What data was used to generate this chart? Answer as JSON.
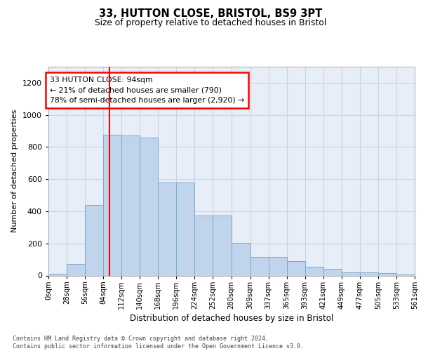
{
  "title1": "33, HUTTON CLOSE, BRISTOL, BS9 3PT",
  "title2": "Size of property relative to detached houses in Bristol",
  "xlabel": "Distribution of detached houses by size in Bristol",
  "ylabel": "Number of detached properties",
  "bar_heights": [
    10,
    70,
    440,
    875,
    870,
    860,
    580,
    580,
    375,
    375,
    205,
    115,
    115,
    90,
    55,
    40,
    20,
    18,
    15,
    5
  ],
  "bin_edges": [
    0,
    28,
    56,
    84,
    112,
    140,
    168,
    196,
    224,
    252,
    280,
    309,
    337,
    365,
    393,
    421,
    449,
    477,
    505,
    533,
    561
  ],
  "x_labels": [
    "0sqm",
    "28sqm",
    "56sqm",
    "84sqm",
    "112sqm",
    "140sqm",
    "168sqm",
    "196sqm",
    "224sqm",
    "252sqm",
    "280sqm",
    "309sqm",
    "337sqm",
    "365sqm",
    "393sqm",
    "421sqm",
    "449sqm",
    "477sqm",
    "505sqm",
    "533sqm",
    "561sqm"
  ],
  "bar_color": "#c0d4ec",
  "bar_edge_color": "#7aaad0",
  "ylim": [
    0,
    1300
  ],
  "yticks": [
    0,
    200,
    400,
    600,
    800,
    1000,
    1200
  ],
  "vline_x": 94,
  "property_label": "33 HUTTON CLOSE: 94sqm",
  "annotation_line1": "← 21% of detached houses are smaller (790)",
  "annotation_line2": "78% of semi-detached houses are larger (2,920) →",
  "grid_color": "#c8d4e4",
  "bg_color": "#e8eef8",
  "footer1": "Contains HM Land Registry data © Crown copyright and database right 2024.",
  "footer2": "Contains public sector information licensed under the Open Government Licence v3.0."
}
